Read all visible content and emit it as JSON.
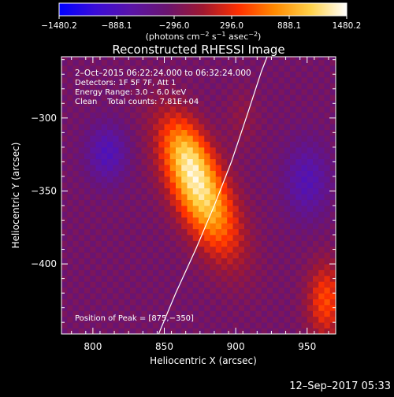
{
  "colorbar": {
    "min": -1480.2,
    "max": 1480.2,
    "tick_labels": [
      "−1480.2",
      "−888.1",
      "−296.0",
      "296.0",
      "888.1",
      "1480.2"
    ],
    "tick_values": [
      -1480.2,
      -888.1,
      -296.0,
      296.0,
      888.1,
      1480.2
    ],
    "unit_label_parts": [
      "(photons cm",
      "−2",
      " s",
      "−1",
      " asec",
      "−2",
      ")"
    ],
    "colors": [
      "#0000ff",
      "#3a0cd8",
      "#5a14a8",
      "#6a1470",
      "#a01830",
      "#ff3000",
      "#ff8a00",
      "#ffd24a",
      "#ffffff"
    ]
  },
  "chart_data": {
    "type": "heatmap",
    "title": "Reconstructed RHESSI Image",
    "xlabel": "Heliocentric X (arcsec)",
    "ylabel": "Heliocentric Y (arcsec)",
    "xlim": [
      778,
      970
    ],
    "ylim": [
      -448,
      -258
    ],
    "x_ticks": [
      800,
      850,
      900,
      950
    ],
    "x_tick_labels": [
      "800",
      "850",
      "900",
      "950"
    ],
    "y_ticks": [
      -300,
      -350,
      -400
    ],
    "y_tick_labels": [
      "−300",
      "−350",
      "−400"
    ],
    "annotations": [
      "2–Oct–2015 06:22:24.000 to 06:32:24.000",
      "Detectors: 1F 5F 7F, Att 1",
      "Energy Range: 3.0 – 6.0 keV",
      "Clean    Total counts: 7.81E+04"
    ],
    "peak_label": "Position of Peak = [875,−350]",
    "peak": {
      "x": 875,
      "y": -350
    },
    "limb_curve": [
      [
        846,
        -448
      ],
      [
        858,
        -420
      ],
      [
        872,
        -390
      ],
      [
        885,
        -360
      ],
      [
        897,
        -330
      ],
      [
        908,
        -298
      ],
      [
        918,
        -268
      ],
      [
        922,
        -258
      ]
    ],
    "sources": [
      {
        "x": 875,
        "y": -350,
        "sx": 13,
        "sy": 32,
        "amp": 1480,
        "rot_deg": -25
      },
      {
        "x": 866,
        "y": -322,
        "sx": 10,
        "sy": 18,
        "amp": 520,
        "rot_deg": -20
      },
      {
        "x": 963,
        "y": -425,
        "sx": 9,
        "sy": 18,
        "amp": 760,
        "rot_deg": 0
      },
      {
        "x": 810,
        "y": -324,
        "sx": 10,
        "sy": 14,
        "amp": -520,
        "rot_deg": 0
      },
      {
        "x": 950,
        "y": -343,
        "sx": 11,
        "sy": 18,
        "amp": -480,
        "rot_deg": 0
      },
      {
        "x": 905,
        "y": -300,
        "sx": 8,
        "sy": 14,
        "amp": 200,
        "rot_deg": 0
      }
    ],
    "background": -320
  },
  "footer": {
    "timestamp": "12–Sep–2017 05:33"
  }
}
